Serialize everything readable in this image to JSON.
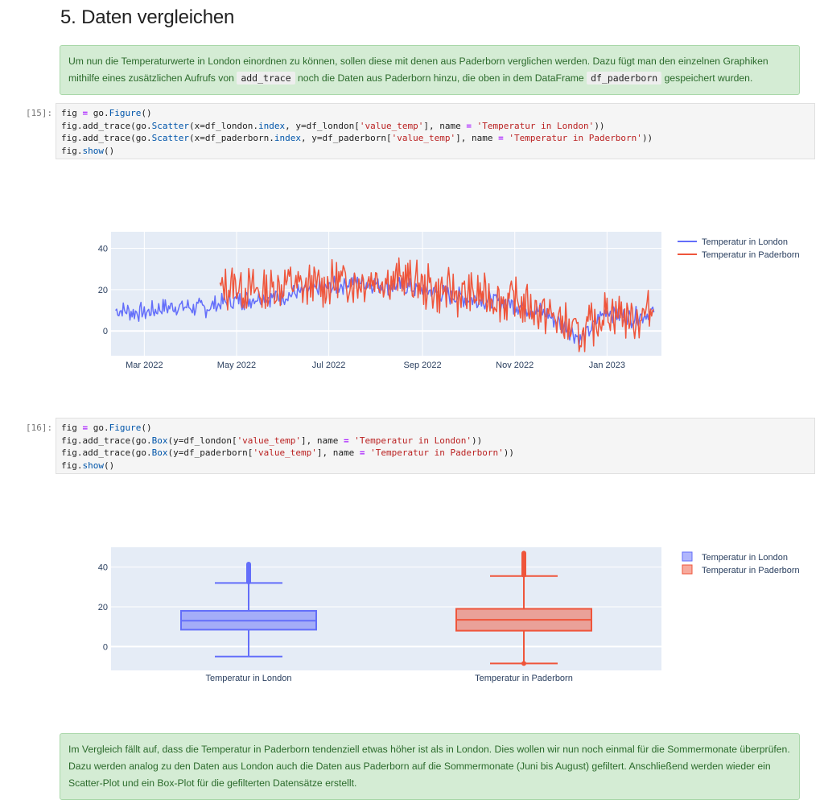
{
  "heading": "5. Daten vergleichen",
  "intro": {
    "part1": "Um nun die Temperaturwerte in London einordnen zu können, sollen diese mit denen aus Paderborn verglichen werden. Dazu fügt man den einzelnen Graphiken mithilfe eines zusätzlichen Aufrufs von ",
    "code1": "add_trace",
    "part2": " noch die Daten aus Paderborn hinzu, die oben in dem DataFrame ",
    "code2": "df_paderborn",
    "part3": " gespeichert wurden."
  },
  "cell15": {
    "prompt": "[15]:",
    "lines": [
      "fig = go.Figure()",
      "fig.add_trace(go.Scatter(x=df_london.index, y=df_london['value_temp'], name = 'Temperatur in London'))",
      "fig.add_trace(go.Scatter(x=df_paderborn.index, y=df_paderborn['value_temp'], name = 'Temperatur in Paderborn'))",
      "fig.show()"
    ]
  },
  "cell16": {
    "prompt": "[16]:",
    "lines": [
      "fig = go.Figure()",
      "fig.add_trace(go.Box(y=df_london['value_temp'], name = 'Temperatur in London'))",
      "fig.add_trace(go.Box(y=df_paderborn['value_temp'], name = 'Temperatur in Paderborn'))",
      "fig.show()"
    ]
  },
  "conclusion": "Im Vergleich fällt auf, dass die Temperatur in Paderborn tendenziell etwas höher ist als in London. Dies wollen wir nun noch einmal für die Sommermonate überprüfen. Dazu werden analog zu den Daten aus London auch die Daten aus Paderborn auf die Sommermonate (Juni bis August) gefiltert. Anschließend werden wieder ein Scatter-Plot und ein Box-Plot für die gefilterten Datensätze erstellt.",
  "colors": {
    "london": "#636efa",
    "paderborn": "#ef553b",
    "plot_bg": "#e5ecf6"
  },
  "chart_data": [
    {
      "type": "line",
      "xlabel": "",
      "ylabel": "",
      "x_ticks": [
        "Mar 2022",
        "May 2022",
        "Jul 2022",
        "Sep 2022",
        "Nov 2022",
        "Jan 2023"
      ],
      "y_ticks": [
        0,
        20,
        40
      ],
      "ylim": [
        -12,
        48
      ],
      "legend": "top-right",
      "series": [
        {
          "name": "Temperatur in London",
          "x": [
            "2022-02-10",
            "2022-03-01",
            "2022-03-20",
            "2022-04-10",
            "2022-04-25",
            "2022-05-15",
            "2022-06-01",
            "2022-06-15",
            "2022-07-01",
            "2022-07-20",
            "2022-08-10",
            "2022-09-01",
            "2022-09-20",
            "2022-10-10",
            "2022-11-01",
            "2022-11-20",
            "2022-12-05",
            "2022-12-15",
            "2023-01-01",
            "2023-01-15",
            "2023-02-01"
          ],
          "y": [
            10,
            9,
            12,
            11,
            14,
            16,
            17,
            19,
            21,
            24,
            22,
            20,
            17,
            15,
            13,
            9,
            2,
            -4,
            10,
            6,
            9
          ]
        },
        {
          "name": "Temperatur in Paderborn",
          "x": [
            "2022-04-20",
            "2022-05-01",
            "2022-05-20",
            "2022-06-05",
            "2022-06-10",
            "2022-06-25",
            "2022-07-15",
            "2022-08-01",
            "2022-08-20",
            "2022-09-10",
            "2022-10-01",
            "2022-10-20",
            "2022-11-10",
            "2022-12-01",
            "2022-12-15",
            "2023-01-01",
            "2023-01-20",
            "2023-02-01"
          ],
          "y": [
            20,
            22,
            18,
            24,
            21,
            22,
            24,
            25,
            24,
            20,
            17,
            16,
            13,
            5,
            -3,
            10,
            6,
            10
          ]
        }
      ]
    },
    {
      "type": "box",
      "categories": [
        "Temperatur in London",
        "Temperatur in Paderborn"
      ],
      "y_ticks": [
        0,
        20,
        40
      ],
      "ylim": [
        -12,
        50
      ],
      "legend": "top-right",
      "series": [
        {
          "name": "Temperatur in London",
          "lowerfence": -5,
          "q1": 8.5,
          "median": 13,
          "q3": 18,
          "upperfence": 32,
          "outliers_min": 32.5,
          "outliers_max": 41.5
        },
        {
          "name": "Temperatur in Paderborn",
          "lowerfence": -8.5,
          "q1": 8,
          "median": 13.5,
          "q3": 19,
          "upperfence": 35.5,
          "outliers_min": 36,
          "outliers_max": 47
        }
      ]
    }
  ]
}
